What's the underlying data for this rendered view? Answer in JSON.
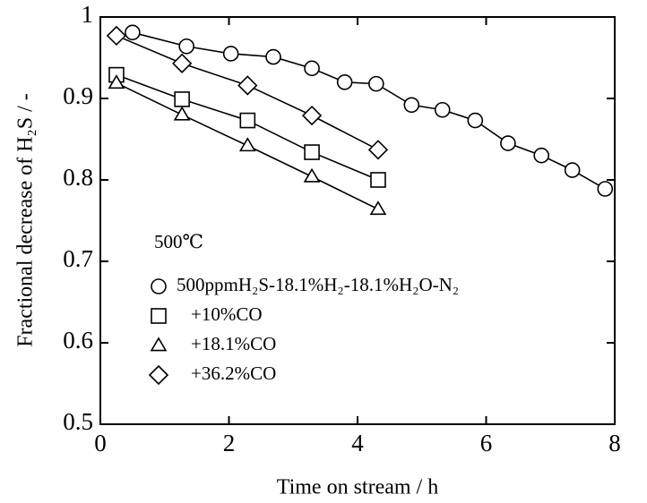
{
  "chart_data": {
    "type": "scatter-line",
    "xlabel": "Time on stream / h",
    "ylabel": "Fractional decrease of H₂S / -",
    "annotation": "500℃",
    "xlim": [
      0,
      8
    ],
    "xticks": [
      0,
      2,
      4,
      6,
      8
    ],
    "ylim": [
      0.5,
      1
    ],
    "yticks": [
      0.5,
      0.6,
      0.7,
      0.8,
      0.9,
      1
    ],
    "series": [
      {
        "name": "500ppmH₂S-18.1%H₂-18.1%H₂O-N₂",
        "marker": "circle",
        "color": "#000000",
        "x": [
          0.5,
          1.34,
          2.03,
          2.69,
          3.29,
          3.8,
          4.29,
          4.84,
          5.32,
          5.83,
          6.34,
          6.86,
          7.34,
          7.85
        ],
        "values": [
          0.981,
          0.964,
          0.955,
          0.951,
          0.937,
          0.92,
          0.918,
          0.892,
          0.886,
          0.873,
          0.845,
          0.83,
          0.812,
          0.789
        ]
      },
      {
        "name": "+10%CO",
        "marker": "square",
        "color": "#000000",
        "x": [
          0.25,
          1.27,
          2.29,
          3.29,
          4.32
        ],
        "values": [
          0.929,
          0.899,
          0.873,
          0.834,
          0.8
        ]
      },
      {
        "name": "+18.1%CO",
        "marker": "triangle",
        "color": "#000000",
        "x": [
          0.25,
          1.27,
          2.29,
          3.29,
          4.32
        ],
        "values": [
          0.919,
          0.88,
          0.842,
          0.804,
          0.764
        ]
      },
      {
        "name": "+36.2%CO",
        "marker": "diamond",
        "color": "#000000",
        "x": [
          0.25,
          1.27,
          2.29,
          3.29,
          4.32
        ],
        "values": [
          0.977,
          0.943,
          0.916,
          0.879,
          0.837
        ]
      }
    ]
  }
}
